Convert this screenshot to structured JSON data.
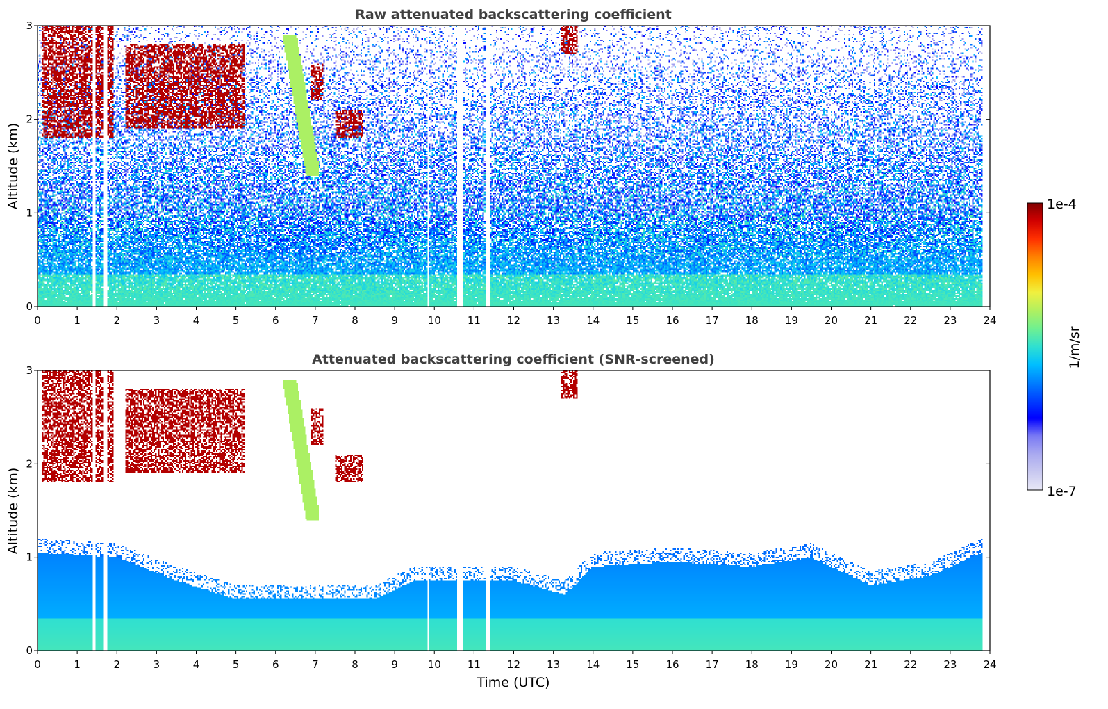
{
  "chart_data": [
    {
      "type": "heatmap",
      "title": "Raw attenuated backscattering coefficient",
      "xlabel": "",
      "ylabel": "Altitude (km)",
      "xlim": [
        0,
        24
      ],
      "ylim": [
        0,
        3
      ],
      "x_ticks": [
        "0",
        "1",
        "2",
        "3",
        "4",
        "5",
        "6",
        "7",
        "8",
        "9",
        "10",
        "11",
        "12",
        "13",
        "14",
        "15",
        "16",
        "17",
        "18",
        "19",
        "20",
        "21",
        "22",
        "23",
        "24"
      ],
      "y_ticks": [
        "0",
        "1",
        "2",
        "3"
      ],
      "data_time_range_utc": [
        0,
        23.8
      ],
      "missing_profile_intervals_utc": [
        [
          1.38,
          1.48
        ],
        [
          1.66,
          1.76
        ],
        [
          9.82,
          9.88
        ],
        [
          10.58,
          10.72
        ],
        [
          11.28,
          11.4
        ]
      ],
      "features": [
        {
          "name": "surface aerosol layer",
          "time_utc": [
            0,
            23.8
          ],
          "alt_km": [
            0,
            0.5
          ]
        },
        {
          "name": "boundary layer",
          "time_utc": [
            0,
            23.8
          ],
          "alt_km": [
            0,
            1.0
          ]
        },
        {
          "name": "cloud",
          "time_utc": [
            0.1,
            1.9
          ],
          "alt_km": [
            1.8,
            3.0
          ]
        },
        {
          "name": "cloud",
          "time_utc": [
            2.2,
            5.2
          ],
          "alt_km": [
            1.9,
            2.8
          ]
        },
        {
          "name": "cloud",
          "time_utc": [
            6.9,
            7.2
          ],
          "alt_km": [
            2.2,
            2.6
          ]
        },
        {
          "name": "cloud",
          "time_utc": [
            7.5,
            8.2
          ],
          "alt_km": [
            1.8,
            2.1
          ]
        },
        {
          "name": "cloud",
          "time_utc": [
            13.2,
            13.6
          ],
          "alt_km": [
            2.7,
            3.0
          ]
        },
        {
          "name": "aerosol plume",
          "time_utc": [
            6.2,
            7.1
          ],
          "alt_km": [
            1.4,
            2.9
          ]
        }
      ],
      "colorscale": "jet",
      "log_scale": true
    },
    {
      "type": "heatmap",
      "title": "Attenuated backscattering coefficient (SNR-screened)",
      "xlabel": "Time (UTC)",
      "ylabel": "Altitude (km)",
      "xlim": [
        0,
        24
      ],
      "ylim": [
        0,
        3
      ],
      "x_ticks": [
        "0",
        "1",
        "2",
        "3",
        "4",
        "5",
        "6",
        "7",
        "8",
        "9",
        "10",
        "11",
        "12",
        "13",
        "14",
        "15",
        "16",
        "17",
        "18",
        "19",
        "20",
        "21",
        "22",
        "23",
        "24"
      ],
      "y_ticks": [
        "0",
        "1",
        "2",
        "3"
      ],
      "screening": "SNR",
      "colorscale": "jet",
      "log_scale": true
    }
  ],
  "colorbar": {
    "label": "1/m/sr",
    "max_label": "1e-4",
    "min_label": "1e-7",
    "range": [
      1e-07,
      0.0001
    ],
    "log_scale": true,
    "colors": [
      "#e8e8f6",
      "#c8c8f0",
      "#aaaaf0",
      "#7a7af4",
      "#0000ff",
      "#0040ff",
      "#0080ff",
      "#00bfff",
      "#30e0d0",
      "#70f090",
      "#b0f060",
      "#f0f040",
      "#ffc000",
      "#ff8000",
      "#ff3000",
      "#d00000",
      "#800000"
    ]
  },
  "colors": {
    "text": "#000000",
    "title": "#404040",
    "background": "#ffffff"
  }
}
